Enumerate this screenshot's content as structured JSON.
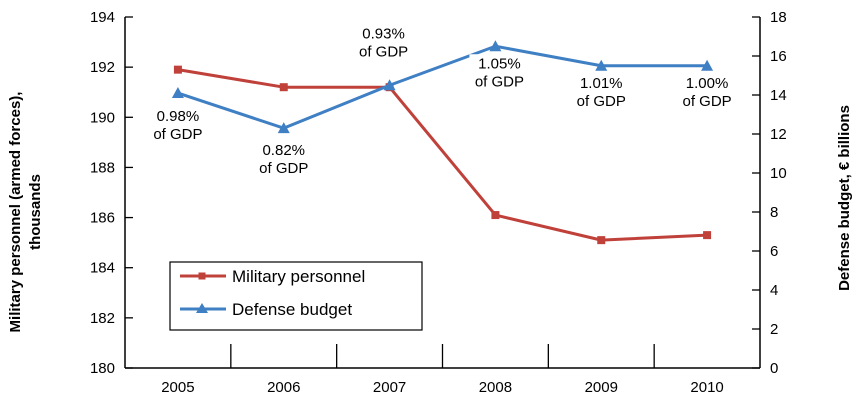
{
  "chart_data": {
    "type": "line",
    "categories": [
      "2005",
      "2006",
      "2007",
      "2008",
      "2009",
      "2010"
    ],
    "left_axis": {
      "label_line1": "Military personnel (armed forces),",
      "label_line2": "thousands",
      "ylim": [
        180,
        194
      ],
      "ticks": [
        180,
        182,
        184,
        186,
        188,
        190,
        192,
        194
      ]
    },
    "right_axis": {
      "label": "Defense budget, € billions",
      "ylim": [
        0,
        18
      ],
      "ticks": [
        0,
        2,
        4,
        6,
        8,
        10,
        12,
        14,
        16,
        18
      ]
    },
    "series": [
      {
        "name": "Military personnel",
        "axis": "left",
        "color": "#c0403a",
        "marker": "square",
        "values": [
          191.9,
          191.2,
          191.2,
          186.1,
          185.1,
          185.3
        ]
      },
      {
        "name": "Defense budget",
        "axis": "right",
        "color": "#3f7fc3",
        "marker": "triangle",
        "values": [
          14.1,
          12.3,
          14.5,
          16.5,
          15.5,
          15.5
        ]
      }
    ],
    "annotations": [
      {
        "line1": "0.98%",
        "line2": "of GDP"
      },
      {
        "line1": "0.82%",
        "line2": "of GDP"
      },
      {
        "line1": "0.93%",
        "line2": "of GDP"
      },
      {
        "line1": "1.05%",
        "line2": "of GDP"
      },
      {
        "line1": "1.01%",
        "line2": "of GDP"
      },
      {
        "line1": "1.00%",
        "line2": "of GDP"
      }
    ],
    "legend_placement": "lower-left",
    "grid": false
  }
}
